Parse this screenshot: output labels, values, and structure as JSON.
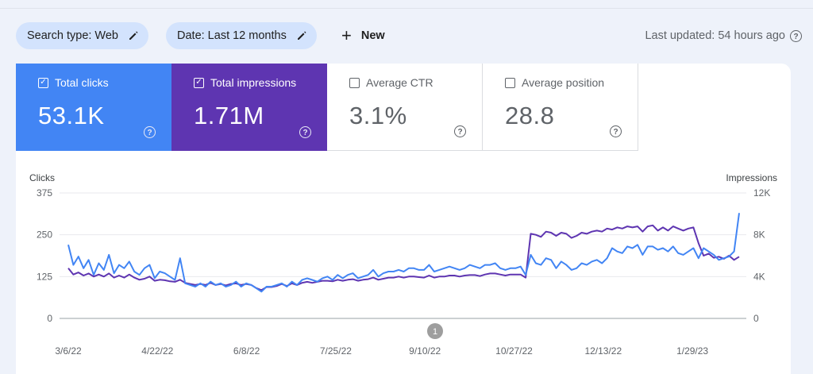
{
  "toolbar": {
    "search_type": "Search type: Web",
    "date_range": "Date: Last 12 months",
    "new_label": "New",
    "last_updated": "Last updated: 54 hours ago"
  },
  "metrics": [
    {
      "label": "Total clicks",
      "value": "53.1K",
      "checked": true,
      "color": "#4285f4"
    },
    {
      "label": "Total impressions",
      "value": "1.71M",
      "checked": true,
      "color": "#5e35b1"
    },
    {
      "label": "Average CTR",
      "value": "3.1%",
      "checked": false,
      "color": "#ffffff"
    },
    {
      "label": "Average position",
      "value": "28.8",
      "checked": false,
      "color": "#ffffff"
    }
  ],
  "chart_data": {
    "type": "line",
    "ylabel_left": "Clicks",
    "ylabel_right": "Impressions",
    "y_left_ticks": [
      "375",
      "250",
      "125",
      "0"
    ],
    "y_right_ticks": [
      "12K",
      "8K",
      "4K",
      "0"
    ],
    "ylim_left": [
      0,
      375
    ],
    "ylim_right": [
      0,
      12000
    ],
    "x_ticks": [
      "3/6/22",
      "4/22/22",
      "6/8/22",
      "7/25/22",
      "9/10/22",
      "10/27/22",
      "12/13/22",
      "1/29/23"
    ],
    "annotation": "1",
    "grid": true,
    "series": [
      {
        "name": "Total clicks",
        "color": "#4285f4",
        "axis": "left",
        "values": [
          220,
          160,
          185,
          150,
          175,
          130,
          165,
          145,
          190,
          135,
          160,
          150,
          170,
          140,
          130,
          150,
          160,
          120,
          140,
          135,
          125,
          115,
          180,
          105,
          100,
          95,
          105,
          95,
          110,
          100,
          105,
          95,
          100,
          110,
          95,
          105,
          100,
          90,
          80,
          95,
          95,
          100,
          105,
          95,
          110,
          100,
          115,
          120,
          115,
          110,
          120,
          125,
          115,
          130,
          120,
          130,
          135,
          120,
          125,
          130,
          145,
          125,
          135,
          140,
          140,
          145,
          140,
          150,
          150,
          145,
          145,
          160,
          140,
          145,
          150,
          155,
          150,
          145,
          150,
          160,
          155,
          150,
          160,
          160,
          165,
          150,
          145,
          150,
          150,
          155,
          130,
          190,
          165,
          160,
          180,
          175,
          150,
          170,
          160,
          145,
          150,
          165,
          160,
          170,
          175,
          165,
          180,
          210,
          200,
          195,
          215,
          210,
          220,
          190,
          215,
          215,
          205,
          210,
          200,
          215,
          195,
          190,
          200,
          210,
          180,
          210,
          200,
          190,
          175,
          180,
          185,
          200,
          315
        ]
      },
      {
        "name": "Total impressions",
        "color": "#5e35b1",
        "axis": "right",
        "values": [
          4800,
          4200,
          4400,
          4100,
          4300,
          4000,
          4200,
          4000,
          4300,
          3900,
          4100,
          3900,
          4200,
          3900,
          3700,
          3800,
          4000,
          3600,
          3700,
          3650,
          3550,
          3500,
          3700,
          3400,
          3300,
          3200,
          3300,
          3200,
          3400,
          3200,
          3300,
          3150,
          3300,
          3350,
          3200,
          3300,
          3200,
          2900,
          2700,
          3000,
          3000,
          3100,
          3300,
          3100,
          3350,
          3200,
          3400,
          3500,
          3400,
          3500,
          3600,
          3600,
          3550,
          3700,
          3600,
          3700,
          3750,
          3600,
          3700,
          3750,
          3900,
          3700,
          3800,
          3900,
          3900,
          4000,
          3900,
          4000,
          4000,
          3950,
          3900,
          4100,
          3900,
          4000,
          4000,
          4100,
          4100,
          4000,
          4100,
          4150,
          4150,
          4050,
          4200,
          4300,
          4300,
          4200,
          4100,
          4200,
          4200,
          4200,
          3900,
          8100,
          8000,
          7800,
          8300,
          8200,
          7900,
          8200,
          8100,
          7700,
          7900,
          8200,
          8100,
          8300,
          8400,
          8300,
          8600,
          8500,
          8700,
          8600,
          8800,
          8700,
          8800,
          8300,
          8800,
          8900,
          8400,
          8700,
          8400,
          8800,
          8600,
          8400,
          8600,
          8700,
          7200,
          6000,
          6200,
          5800,
          5900,
          5700,
          6000,
          5600,
          5900
        ]
      }
    ]
  }
}
